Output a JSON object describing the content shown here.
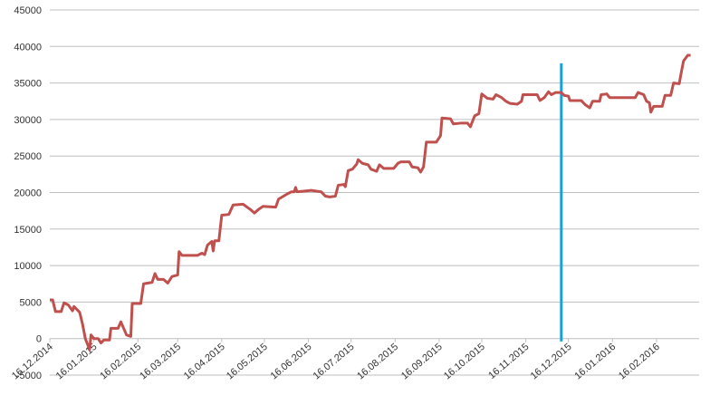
{
  "chart_data": {
    "type": "line",
    "x": [
      "16.12.2014",
      "18.12.2014",
      "20.12.2014",
      "24.12.2014",
      "26.12.2014",
      "29.12.2014",
      "01.01.2015",
      "02.01.2015",
      "06.01.2015",
      "08.01.2015",
      "10.01.2015",
      "13.01.2015",
      "14.01.2015",
      "16.01.2015",
      "19.01.2015",
      "21.01.2015",
      "23.01.2015",
      "27.01.2015",
      "28.01.2015",
      "02.02.2015",
      "04.02.2015",
      "06.02.2015",
      "08.02.2015",
      "11.02.2015",
      "12.02.2015",
      "18.02.2015",
      "20.02.2015",
      "26.02.2015",
      "28.02.2015",
      "02.03.2015",
      "06.03.2015",
      "09.03.2015",
      "12.03.2015",
      "16.03.2015",
      "17.03.2015",
      "19.03.2015",
      "30.03.2015",
      "02.04.2015",
      "04.04.2015",
      "06.04.2015",
      "09.04.2015",
      "10.04.2015",
      "11.04.2015",
      "14.04.2015",
      "16.04.2015",
      "21.04.2015",
      "24.04.2015",
      "01.05.2015",
      "06.05.2015",
      "09.05.2015",
      "12.05.2015",
      "15.05.2015",
      "24.05.2015",
      "26.05.2015",
      "01.06.2015",
      "04.06.2015",
      "06.06.2015",
      "07.06.2015",
      "08.06.2015",
      "18.06.2015",
      "25.06.2015",
      "28.06.2015",
      "01.07.2015",
      "05.07.2015",
      "07.07.2015",
      "11.07.2015",
      "12.07.2015",
      "14.07.2015",
      "17.07.2015",
      "20.07.2015",
      "21.07.2015",
      "24.07.2015",
      "28.07.2015",
      "30.07.2015",
      "03.08.2015",
      "05.08.2015",
      "08.08.2015",
      "15.08.2015",
      "18.08.2015",
      "20.08.2015",
      "26.08.2015",
      "28.08.2015",
      "01.09.2015",
      "03.09.2015",
      "05.09.2015",
      "07.09.2015",
      "14.09.2015",
      "17.09.2015",
      "18.09.2015",
      "24.09.2015",
      "26.09.2015",
      "01.10.2015",
      "06.10.2015",
      "08.10.2015",
      "11.10.2015",
      "14.10.2015",
      "16.10.2015",
      "20.10.2015",
      "24.10.2015",
      "26.10.2015",
      "30.10.2015",
      "02.11.2015",
      "05.11.2015",
      "10.11.2015",
      "13.11.2015",
      "14.11.2015",
      "24.11.2015",
      "26.11.2015",
      "29.11.2015",
      "02.12.2015",
      "04.12.2015",
      "07.12.2015",
      "11.12.2015",
      "13.12.2015",
      "16.12.2015",
      "17.12.2015",
      "25.12.2015",
      "28.12.2015",
      "31.12.2015",
      "02.01.2016",
      "07.01.2016",
      "08.01.2016",
      "12.01.2016",
      "14.01.2016",
      "01.02.2016",
      "03.02.2016",
      "07.02.2016",
      "09.02.2016",
      "11.02.2016",
      "12.02.2016",
      "14.02.2016",
      "20.02.2016",
      "22.02.2016",
      "26.02.2016",
      "28.02.2016",
      "03.03.2016",
      "04.03.2016",
      "06.03.2016",
      "09.03.2016",
      "11.03.2016"
    ],
    "series": [
      {
        "color": "#c0504d",
        "values": [
          5300,
          5300,
          3700,
          3700,
          4900,
          4600,
          3800,
          4400,
          3600,
          2000,
          0,
          -1500,
          500,
          0,
          0,
          -600,
          -200,
          -200,
          1400,
          1400,
          2300,
          1400,
          500,
          300,
          4800,
          4800,
          7500,
          7700,
          8900,
          8100,
          8100,
          7600,
          8500,
          8700,
          11900,
          11400,
          11400,
          11700,
          11500,
          12800,
          13300,
          12000,
          13400,
          13400,
          16900,
          17000,
          18300,
          18400,
          17700,
          17200,
          17700,
          18100,
          18000,
          19100,
          19800,
          20100,
          20100,
          20700,
          20100,
          20300,
          20100,
          19500,
          19400,
          19500,
          21000,
          21100,
          20800,
          23000,
          23200,
          23900,
          24500,
          24000,
          23800,
          23200,
          22900,
          23800,
          23300,
          23300,
          24000,
          24200,
          24200,
          23500,
          23400,
          22800,
          23500,
          26900,
          26900,
          27800,
          30200,
          30100,
          29400,
          29500,
          29500,
          29000,
          30500,
          30800,
          33500,
          32900,
          32800,
          33400,
          33000,
          32500,
          32200,
          32100,
          32500,
          33400,
          33400,
          32600,
          33000,
          33800,
          33400,
          33700,
          33700,
          33300,
          33200,
          32600,
          32600,
          32000,
          31600,
          32500,
          32500,
          33400,
          33500,
          33000,
          33000,
          33700,
          33400,
          32500,
          32300,
          31000,
          31800,
          31800,
          33300,
          33300,
          35000,
          34900,
          36000,
          38000,
          38800,
          38800
        ]
      }
    ],
    "marker": {
      "x": "11.12.2015",
      "values": [
        -400,
        37700
      ],
      "color": "#1aa0d8"
    },
    "xlim": [
      "16.12.2014",
      "17.03.2016"
    ],
    "xticks": [
      "16.12.2014",
      "16.01.2015",
      "16.02.2015",
      "16.03.2015",
      "16.04.2015",
      "16.05.2015",
      "16.06.2015",
      "16.07.2015",
      "16.08.2015",
      "16.09.2015",
      "16.10.2015",
      "16.11.2015",
      "16.12.2015",
      "16.01.2016",
      "16.02.2016"
    ],
    "ylim": [
      -5000,
      45000
    ],
    "yticks": [
      -5000,
      0,
      5000,
      10000,
      15000,
      20000,
      25000,
      30000,
      35000,
      40000,
      45000
    ],
    "grid": true
  }
}
